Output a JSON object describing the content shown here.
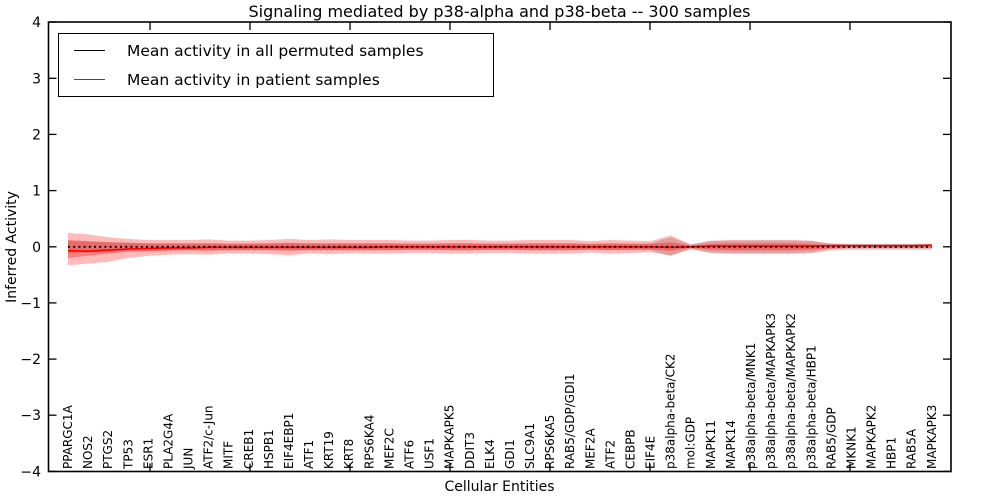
{
  "title": "Signaling mediated by p38-alpha and p38-beta -- 300 samples",
  "axes": {
    "xlabel": "Cellular Entities",
    "ylabel": "Inferred Activity"
  },
  "legend": {
    "items": [
      {
        "label": "Mean activity in all permuted samples",
        "color": "#000000"
      },
      {
        "label": "Mean activity in patient samples",
        "color": "#ff0000"
      }
    ]
  },
  "colors": {
    "patient_line": "#ff0000",
    "permuted_line": "#000000",
    "patient_band": "rgba(255,0,0,0.27)",
    "patient_band_inner": "rgba(255,0,0,0.33)",
    "permuted_band": "rgba(130,130,130,0.32)",
    "frame": "#000000"
  },
  "chart_data": {
    "type": "line",
    "title": "Signaling mediated by p38-alpha and p38-beta -- 300 samples",
    "xlabel": "Cellular Entities",
    "ylabel": "Inferred Activity",
    "ylim": [
      -4,
      4
    ],
    "yticks": [
      4,
      3,
      2,
      1,
      0,
      -1,
      -2,
      -3,
      -4
    ],
    "grid": false,
    "legend_position": "upper left",
    "categories": [
      "PPARGC1A",
      "NOS2",
      "PTGS2",
      "TP53",
      "ESR1",
      "PLA2G4A",
      "JUN",
      "ATF2/c-Jun",
      "MITF",
      "CREB1",
      "HSPB1",
      "EIF4EBP1",
      "ATF1",
      "KRT19",
      "KRT8",
      "RPS6KA4",
      "MEF2C",
      "ATF6",
      "USF1",
      "MAPKAPK5",
      "DDIT3",
      "ELK4",
      "GDI1",
      "SLC9A1",
      "RPS6KA5",
      "RAB5/GDP/GDI1",
      "MEF2A",
      "ATF2",
      "CEBPB",
      "EIF4E",
      "p38alpha-beta/CK2",
      "mol:GDP",
      "MAPK11",
      "MAPK14",
      "p38alpha-beta/MNK1",
      "p38alpha-beta/MAPKAPK3",
      "p38alpha-beta/MAPKAPK2",
      "p38alpha-beta/HBP1",
      "RAB5/GDP",
      "MKNK1",
      "MAPKAPK2",
      "HBP1",
      "RAB5A",
      "MAPKAPK3"
    ],
    "series": [
      {
        "name": "Mean activity in all permuted samples",
        "color": "#000000",
        "style": "dotted",
        "values": [
          0,
          0,
          0,
          0,
          0,
          0,
          0,
          0,
          0,
          0,
          0,
          0,
          0,
          0,
          0,
          0,
          0,
          0,
          0,
          0,
          0,
          0,
          0,
          0,
          0,
          0,
          0,
          0,
          0,
          0,
          0,
          0,
          0,
          0,
          0,
          0,
          0,
          0,
          0,
          0,
          0,
          0,
          0,
          0
        ]
      },
      {
        "name": "Mean activity in patient samples",
        "color": "#ff0000",
        "style": "solid",
        "values": [
          -0.07,
          -0.08,
          -0.06,
          -0.04,
          -0.03,
          -0.02,
          -0.02,
          -0.01,
          -0.01,
          -0.01,
          -0.01,
          -0.01,
          -0.01,
          -0.01,
          -0.01,
          -0.01,
          0,
          0,
          0,
          0,
          0,
          0,
          0,
          0,
          0,
          0,
          0,
          0,
          0,
          0,
          -0.01,
          0,
          0.01,
          0.01,
          0.01,
          0.01,
          0.01,
          0.01,
          0.02,
          0.02,
          0.02,
          0.02,
          0.02,
          0.03
        ]
      }
    ],
    "bands": [
      {
        "name": "permuted-std-band",
        "fill": "rgba(130,130,130,0.32)",
        "upper": [
          0.1,
          0.09,
          0.08,
          0.07,
          0.06,
          0.06,
          0.06,
          0.06,
          0.06,
          0.06,
          0.06,
          0.06,
          0.06,
          0.06,
          0.06,
          0.06,
          0.06,
          0.06,
          0.06,
          0.06,
          0.06,
          0.06,
          0.06,
          0.06,
          0.06,
          0.06,
          0.05,
          0.06,
          0.06,
          0.06,
          0.17,
          0.04,
          0.1,
          0.11,
          0.11,
          0.11,
          0.11,
          0.1,
          0.06,
          0.05,
          0.05,
          0.05,
          0.05,
          0.05
        ],
        "lower": [
          -0.12,
          -0.1,
          -0.09,
          -0.08,
          -0.07,
          -0.06,
          -0.06,
          -0.06,
          -0.06,
          -0.06,
          -0.06,
          -0.06,
          -0.06,
          -0.06,
          -0.06,
          -0.06,
          -0.06,
          -0.06,
          -0.06,
          -0.06,
          -0.06,
          -0.06,
          -0.06,
          -0.06,
          -0.06,
          -0.06,
          -0.05,
          -0.06,
          -0.06,
          -0.06,
          -0.17,
          -0.04,
          -0.12,
          -0.13,
          -0.13,
          -0.13,
          -0.13,
          -0.12,
          -0.07,
          -0.06,
          -0.06,
          -0.06,
          -0.06,
          -0.06
        ]
      },
      {
        "name": "patient-band-outer",
        "fill": "rgba(255,0,0,0.27)",
        "upper": [
          0.25,
          0.22,
          0.17,
          0.14,
          0.12,
          0.12,
          0.12,
          0.13,
          0.11,
          0.11,
          0.12,
          0.14,
          0.12,
          0.13,
          0.12,
          0.12,
          0.12,
          0.11,
          0.11,
          0.12,
          0.12,
          0.11,
          0.11,
          0.12,
          0.12,
          0.12,
          0.1,
          0.12,
          0.11,
          0.1,
          0.2,
          0.04,
          0.11,
          0.12,
          0.12,
          0.12,
          0.12,
          0.11,
          0.05,
          0.04,
          0.04,
          0.04,
          0.04,
          0.04
        ],
        "lower": [
          -0.33,
          -0.3,
          -0.27,
          -0.2,
          -0.16,
          -0.14,
          -0.13,
          -0.14,
          -0.12,
          -0.12,
          -0.13,
          -0.15,
          -0.12,
          -0.13,
          -0.12,
          -0.12,
          -0.12,
          -0.11,
          -0.11,
          -0.12,
          -0.12,
          -0.11,
          -0.11,
          -0.12,
          -0.12,
          -0.12,
          -0.1,
          -0.12,
          -0.11,
          -0.1,
          -0.15,
          -0.04,
          -0.1,
          -0.11,
          -0.11,
          -0.11,
          -0.11,
          -0.1,
          -0.04,
          -0.03,
          -0.03,
          -0.03,
          -0.03,
          -0.03
        ]
      },
      {
        "name": "patient-band-inner",
        "fill": "rgba(255,0,0,0.33)",
        "upper": [
          0.12,
          0.1,
          0.08,
          0.07,
          0.06,
          0.06,
          0.06,
          0.06,
          0.05,
          0.05,
          0.06,
          0.07,
          0.06,
          0.06,
          0.06,
          0.06,
          0.06,
          0.05,
          0.05,
          0.06,
          0.06,
          0.05,
          0.05,
          0.06,
          0.06,
          0.06,
          0.05,
          0.06,
          0.05,
          0.05,
          0.08,
          0.02,
          0.05,
          0.06,
          0.06,
          0.06,
          0.06,
          0.05,
          0.03,
          0.02,
          0.02,
          0.02,
          0.02,
          0.02
        ],
        "lower": [
          -0.2,
          -0.16,
          -0.12,
          -0.09,
          -0.08,
          -0.07,
          -0.06,
          -0.07,
          -0.06,
          -0.06,
          -0.06,
          -0.07,
          -0.06,
          -0.06,
          -0.06,
          -0.06,
          -0.06,
          -0.05,
          -0.05,
          -0.06,
          -0.06,
          -0.05,
          -0.05,
          -0.06,
          -0.06,
          -0.06,
          -0.05,
          -0.06,
          -0.05,
          -0.05,
          -0.07,
          -0.02,
          -0.05,
          -0.06,
          -0.06,
          -0.06,
          -0.06,
          -0.05,
          -0.03,
          -0.02,
          -0.02,
          -0.02,
          -0.02,
          -0.02
        ]
      }
    ]
  }
}
